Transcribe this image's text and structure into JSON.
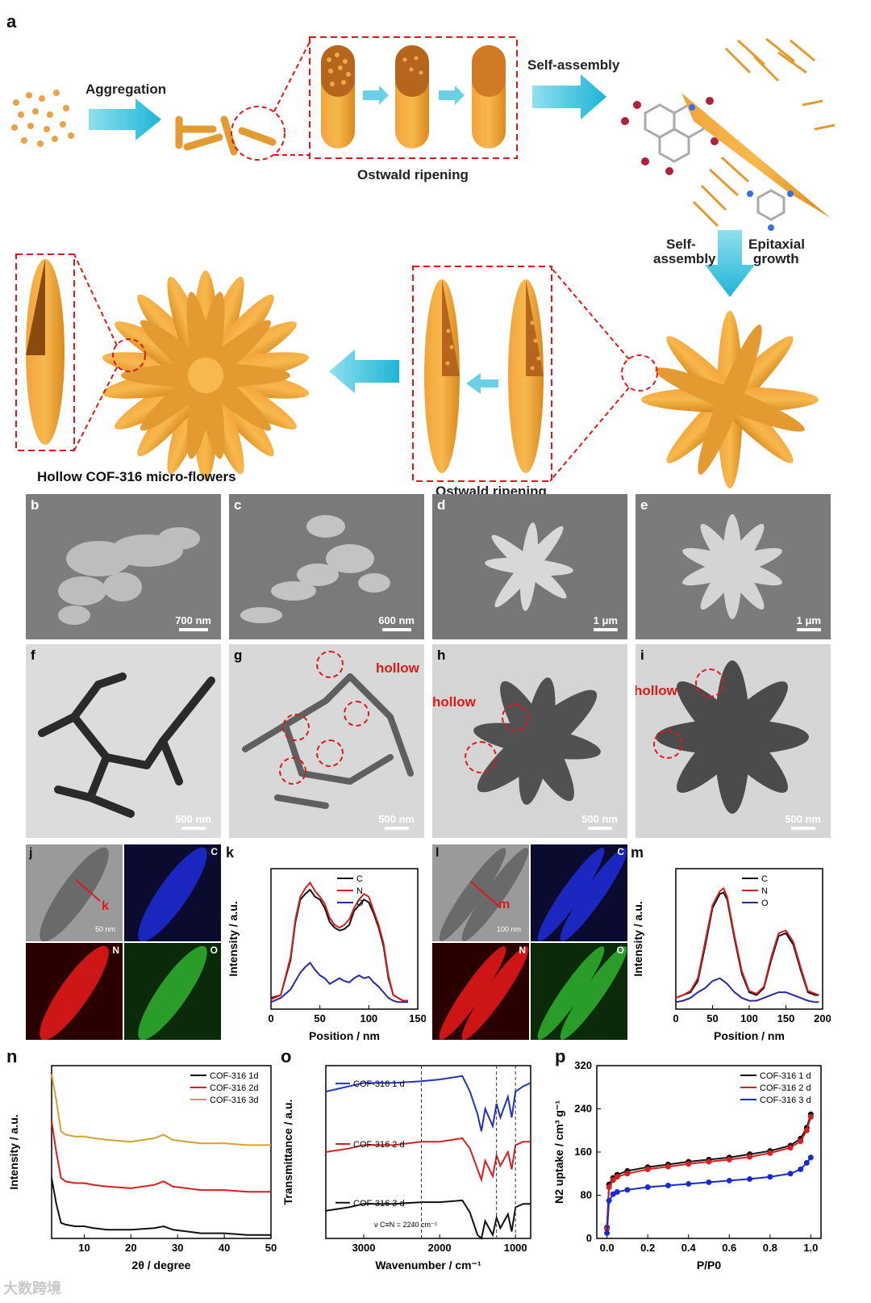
{
  "figure": {
    "panel_a": {
      "label": "a",
      "steps": {
        "aggregation": "Aggregation",
        "ostwald1": "Ostwald ripening",
        "self_assembly": "Self-assembly",
        "self_assembly2": "Self-\nassembly",
        "epitaxial": "Epitaxial\ngrowth",
        "ostwald2": "Ostwald ripening",
        "final": "Hollow COF-316 micro-flowers"
      }
    },
    "sem": [
      {
        "label": "b",
        "scale": "700 nm"
      },
      {
        "label": "c",
        "scale": "600 nm"
      },
      {
        "label": "d",
        "scale": "1 μm"
      },
      {
        "label": "e",
        "scale": "1 μm"
      }
    ],
    "tem": [
      {
        "label": "f",
        "scale": "500 nm"
      },
      {
        "label": "g",
        "scale": "500 nm",
        "note": "hollow"
      },
      {
        "label": "h",
        "scale": "500 nm",
        "note": "hollow"
      },
      {
        "label": "i",
        "scale": "500 nm",
        "note": "hollow"
      }
    ],
    "eds_j": {
      "label": "j",
      "marker": "k",
      "scale": "50 nm",
      "maps": [
        "C",
        "N",
        "O"
      ]
    },
    "eds_l": {
      "label": "l",
      "marker": "m",
      "scale": "100 nm",
      "maps": [
        "C",
        "N",
        "O"
      ]
    }
  },
  "chart_data": [
    {
      "panel": "k",
      "type": "line",
      "xlabel": "Position / nm",
      "ylabel": "Intensity / a.u.",
      "xlim": [
        0,
        150
      ],
      "xticks": [
        "0",
        "50",
        "100",
        "150"
      ],
      "legend": "top-right",
      "series": [
        {
          "name": "C",
          "color": "#111111",
          "x": [
            0,
            10,
            20,
            25,
            30,
            35,
            40,
            45,
            50,
            55,
            60,
            65,
            70,
            75,
            80,
            85,
            90,
            95,
            100,
            105,
            110,
            115,
            120,
            125,
            130,
            135,
            140
          ],
          "y": [
            0.08,
            0.1,
            0.35,
            0.62,
            0.78,
            0.82,
            0.85,
            0.8,
            0.78,
            0.72,
            0.62,
            0.58,
            0.56,
            0.57,
            0.6,
            0.7,
            0.74,
            0.78,
            0.76,
            0.68,
            0.58,
            0.45,
            0.22,
            0.1,
            0.08,
            0.06,
            0.06
          ]
        },
        {
          "name": "N",
          "color": "#d42020",
          "x": [
            0,
            10,
            20,
            25,
            30,
            35,
            40,
            45,
            50,
            55,
            60,
            65,
            70,
            75,
            80,
            85,
            90,
            95,
            100,
            105,
            110,
            115,
            120,
            125,
            130,
            135,
            140
          ],
          "y": [
            0.07,
            0.1,
            0.37,
            0.64,
            0.8,
            0.86,
            0.9,
            0.84,
            0.8,
            0.75,
            0.65,
            0.6,
            0.58,
            0.6,
            0.64,
            0.72,
            0.78,
            0.82,
            0.8,
            0.7,
            0.6,
            0.47,
            0.24,
            0.1,
            0.08,
            0.06,
            0.06
          ]
        },
        {
          "name": "O",
          "color": "#2a2aa0",
          "x": [
            0,
            10,
            20,
            25,
            30,
            35,
            40,
            45,
            50,
            55,
            60,
            65,
            70,
            75,
            80,
            85,
            90,
            95,
            100,
            105,
            110,
            115,
            120,
            125,
            130,
            135,
            140
          ],
          "y": [
            0.05,
            0.08,
            0.14,
            0.2,
            0.26,
            0.3,
            0.33,
            0.28,
            0.24,
            0.22,
            0.18,
            0.2,
            0.22,
            0.2,
            0.19,
            0.22,
            0.24,
            0.22,
            0.23,
            0.19,
            0.16,
            0.12,
            0.08,
            0.06,
            0.05,
            0.05,
            0.05
          ]
        }
      ]
    },
    {
      "panel": "m",
      "type": "line",
      "xlabel": "Position / nm",
      "ylabel": "Intensity / a.u.",
      "xlim": [
        0,
        200
      ],
      "xticks": [
        "0",
        "50",
        "100",
        "150",
        "200"
      ],
      "legend": "top-right",
      "series": [
        {
          "name": "C",
          "color": "#111111",
          "x": [
            0,
            10,
            20,
            30,
            40,
            50,
            60,
            65,
            70,
            80,
            90,
            100,
            110,
            120,
            130,
            140,
            150,
            160,
            170,
            180,
            190,
            195
          ],
          "y": [
            0.08,
            0.1,
            0.12,
            0.2,
            0.45,
            0.72,
            0.82,
            0.83,
            0.78,
            0.5,
            0.25,
            0.12,
            0.1,
            0.15,
            0.35,
            0.52,
            0.54,
            0.46,
            0.28,
            0.12,
            0.1,
            0.1
          ]
        },
        {
          "name": "N",
          "color": "#d42020",
          "x": [
            0,
            10,
            20,
            30,
            40,
            50,
            60,
            65,
            70,
            80,
            90,
            100,
            110,
            120,
            130,
            140,
            150,
            160,
            170,
            180,
            190,
            195
          ],
          "y": [
            0.08,
            0.1,
            0.13,
            0.22,
            0.48,
            0.74,
            0.84,
            0.86,
            0.8,
            0.52,
            0.27,
            0.13,
            0.11,
            0.16,
            0.37,
            0.54,
            0.56,
            0.48,
            0.3,
            0.13,
            0.11,
            0.1
          ]
        },
        {
          "name": "O",
          "color": "#2a2aa0",
          "x": [
            0,
            10,
            20,
            30,
            40,
            50,
            60,
            65,
            70,
            80,
            90,
            100,
            110,
            120,
            130,
            140,
            150,
            160,
            170,
            180,
            190,
            195
          ],
          "y": [
            0.05,
            0.06,
            0.08,
            0.12,
            0.15,
            0.2,
            0.22,
            0.2,
            0.18,
            0.12,
            0.08,
            0.06,
            0.06,
            0.08,
            0.1,
            0.12,
            0.12,
            0.1,
            0.08,
            0.06,
            0.05,
            0.05
          ]
        }
      ]
    },
    {
      "panel": "n",
      "type": "line",
      "xlabel": "2θ / degree",
      "ylabel": "Intensity / a.u.",
      "xlim": [
        3,
        50
      ],
      "xticks": [
        "10",
        "20",
        "30",
        "40",
        "50"
      ],
      "legend": "top-right",
      "series": [
        {
          "name": "COF-316 1d",
          "color": "#111111",
          "x": [
            3,
            4,
            5,
            6,
            8,
            10,
            12,
            15,
            20,
            25,
            27,
            29,
            32,
            35,
            40,
            45,
            50
          ],
          "y": [
            0.35,
            0.2,
            0.09,
            0.08,
            0.07,
            0.07,
            0.06,
            0.05,
            0.05,
            0.06,
            0.07,
            0.05,
            0.04,
            0.03,
            0.03,
            0.02,
            0.02
          ]
        },
        {
          "name": "COF-316 2d",
          "color": "#d42020",
          "x": [
            3,
            4,
            5,
            6,
            8,
            10,
            12,
            15,
            20,
            25,
            27,
            29,
            32,
            35,
            40,
            45,
            50
          ],
          "y": [
            0.68,
            0.5,
            0.35,
            0.33,
            0.32,
            0.32,
            0.31,
            0.3,
            0.29,
            0.31,
            0.33,
            0.3,
            0.29,
            0.28,
            0.28,
            0.27,
            0.27
          ]
        },
        {
          "name": "COF-316 3d",
          "color": "#d4a030",
          "x": [
            3,
            4,
            5,
            6,
            8,
            10,
            12,
            15,
            20,
            25,
            27,
            29,
            32,
            35,
            40,
            45,
            50
          ],
          "y": [
            0.95,
            0.8,
            0.62,
            0.6,
            0.59,
            0.59,
            0.58,
            0.57,
            0.56,
            0.58,
            0.6,
            0.57,
            0.56,
            0.55,
            0.55,
            0.54,
            0.54
          ]
        }
      ]
    },
    {
      "panel": "o",
      "type": "line",
      "xlabel": "Wavenumber / cm⁻¹",
      "ylabel": "Transmittance / a.u.",
      "xlim": [
        3500,
        800
      ],
      "xticks": [
        "3000",
        "2000",
        "1000"
      ],
      "annotation": "ν C≡N = 2240 cm⁻¹",
      "series": [
        {
          "name": "COF-316 1 d",
          "color": "#2233bb",
          "x": [
            3500,
            3200,
            3000,
            2600,
            2240,
            2000,
            1700,
            1600,
            1500,
            1450,
            1400,
            1300,
            1250,
            1200,
            1100,
            1050,
            1000,
            900,
            800
          ],
          "y": [
            0.85,
            0.88,
            0.9,
            0.9,
            0.91,
            0.92,
            0.94,
            0.85,
            0.72,
            0.62,
            0.75,
            0.65,
            0.78,
            0.7,
            0.82,
            0.7,
            0.85,
            0.88,
            0.9
          ]
        },
        {
          "name": "COF-316 2 d",
          "color": "#d42020",
          "x": [
            3500,
            3200,
            3000,
            2600,
            2240,
            2000,
            1700,
            1600,
            1500,
            1450,
            1400,
            1300,
            1250,
            1200,
            1100,
            1050,
            1000,
            900,
            800
          ],
          "y": [
            0.5,
            0.52,
            0.54,
            0.54,
            0.56,
            0.56,
            0.58,
            0.52,
            0.4,
            0.34,
            0.45,
            0.36,
            0.48,
            0.42,
            0.5,
            0.4,
            0.54,
            0.56,
            0.56
          ]
        },
        {
          "name": "COF-316 3 d",
          "color": "#111111",
          "x": [
            3500,
            3200,
            3000,
            2600,
            2240,
            2000,
            1700,
            1600,
            1500,
            1450,
            1400,
            1300,
            1250,
            1200,
            1100,
            1050,
            1000,
            900,
            800
          ],
          "y": [
            0.16,
            0.18,
            0.2,
            0.2,
            0.21,
            0.21,
            0.22,
            0.15,
            0.02,
            0.0,
            0.1,
            0.02,
            0.12,
            0.06,
            0.14,
            0.04,
            0.18,
            0.2,
            0.2
          ]
        }
      ]
    },
    {
      "panel": "p",
      "type": "scatter",
      "xlabel": "P/P0",
      "ylabel": "N2 uptake / cm³ g⁻¹",
      "xlim": [
        -0.05,
        1.05
      ],
      "ylim": [
        0,
        320
      ],
      "xticks": [
        "0.0",
        "0.2",
        "0.4",
        "0.6",
        "0.8",
        "1.0"
      ],
      "yticks": [
        "0",
        "80",
        "160",
        "240",
        "320"
      ],
      "legend": "top-right",
      "series": [
        {
          "name": "COF-316 1 d",
          "color": "#111111",
          "x": [
            0.0,
            0.01,
            0.03,
            0.05,
            0.1,
            0.2,
            0.3,
            0.4,
            0.5,
            0.6,
            0.7,
            0.8,
            0.9,
            0.95,
            0.98,
            1.0
          ],
          "y": [
            20,
            100,
            112,
            118,
            125,
            132,
            137,
            142,
            146,
            150,
            156,
            162,
            172,
            185,
            205,
            230
          ]
        },
        {
          "name": "COF-316 2 d",
          "color": "#d42020",
          "x": [
            0.0,
            0.01,
            0.03,
            0.05,
            0.1,
            0.2,
            0.3,
            0.4,
            0.5,
            0.6,
            0.7,
            0.8,
            0.9,
            0.95,
            0.98,
            1.0
          ],
          "y": [
            18,
            95,
            108,
            114,
            120,
            128,
            133,
            138,
            142,
            146,
            151,
            158,
            168,
            180,
            200,
            225
          ]
        },
        {
          "name": "COF-316 3 d",
          "color": "#1a2ad0",
          "x": [
            0.0,
            0.01,
            0.03,
            0.05,
            0.1,
            0.2,
            0.3,
            0.4,
            0.5,
            0.6,
            0.7,
            0.8,
            0.9,
            0.95,
            0.98,
            1.0
          ],
          "y": [
            10,
            70,
            82,
            86,
            90,
            95,
            98,
            101,
            104,
            107,
            110,
            114,
            120,
            128,
            140,
            150
          ]
        }
      ]
    }
  ],
  "watermark": "大数跨境"
}
